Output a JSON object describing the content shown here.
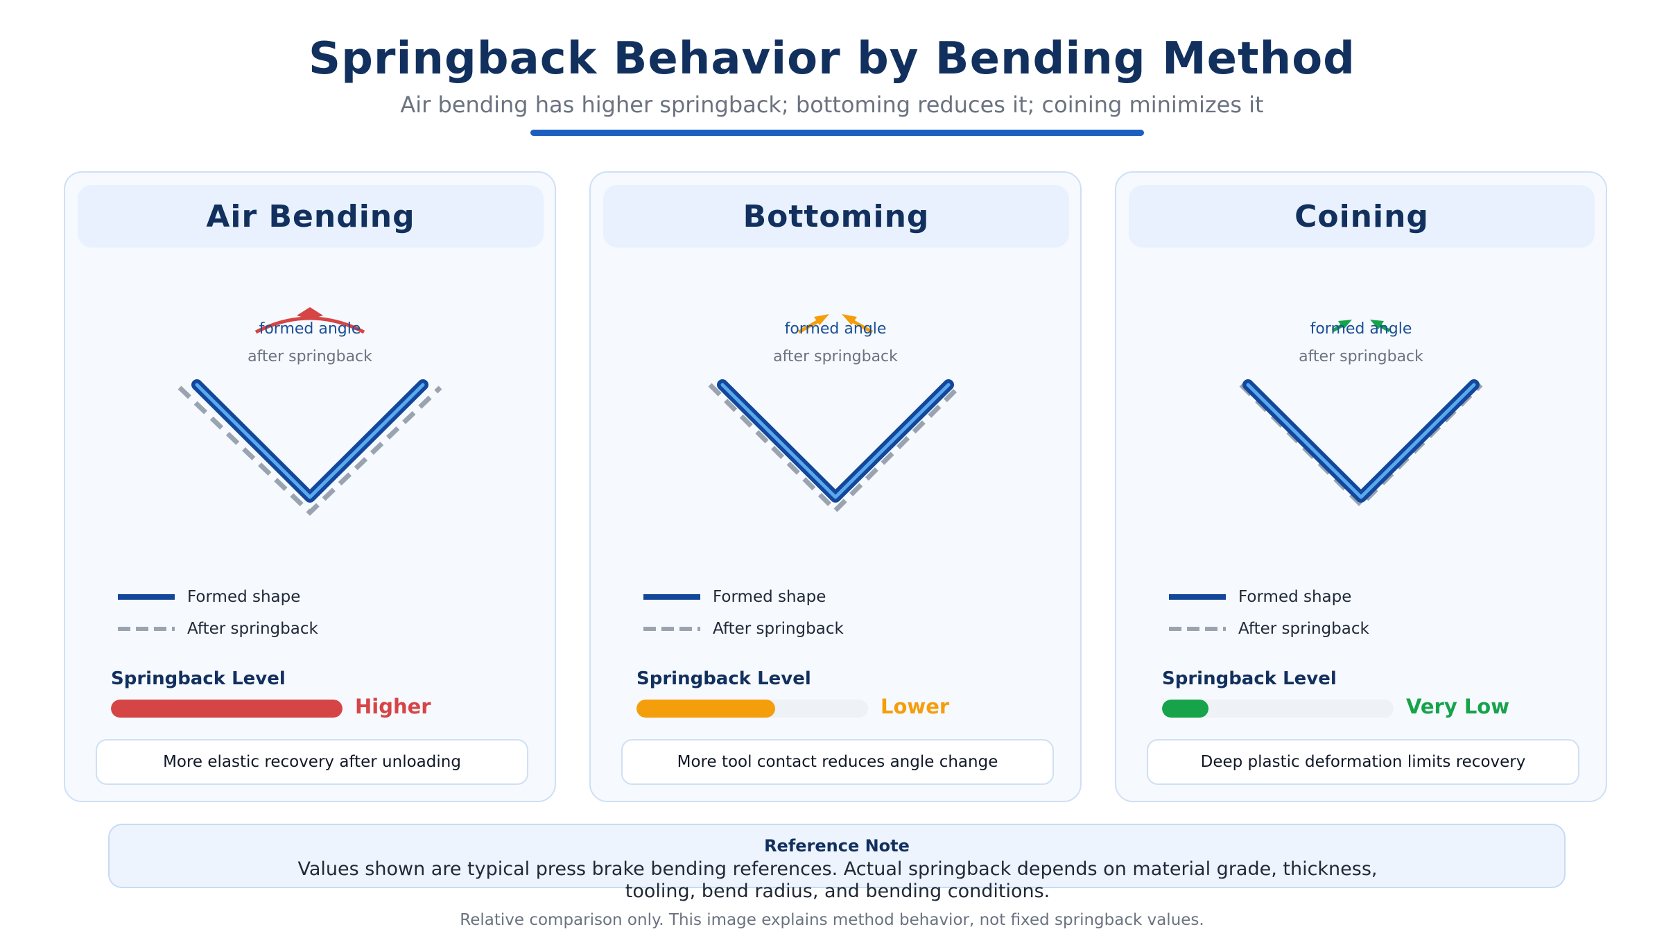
{
  "header": {
    "title": "Springback Behavior by Bending Method",
    "subtitle": "Air bending has higher springback; bottoming reduces it; coining minimizes it"
  },
  "cards": [
    {
      "method": "Air Bending",
      "formed_label": "formed angle",
      "springback_label": "after springback",
      "legend_formed": "Formed shape",
      "legend_after": "After springback",
      "springback_level_label": "Springback Level",
      "level_value": "Higher",
      "level_fraction": 1.0,
      "level_color": "#d64545",
      "arrow_color": "#d64545",
      "note": "More elastic recovery after unloading"
    },
    {
      "method": "Bottoming",
      "formed_label": "formed angle",
      "springback_label": "after springback",
      "legend_formed": "Formed shape",
      "legend_after": "After springback",
      "springback_level_label": "Springback Level",
      "level_value": "Lower",
      "level_fraction": 0.6,
      "level_color": "#f59e0b",
      "arrow_color": "#f59e0b",
      "note": "More tool contact reduces angle change"
    },
    {
      "method": "Coining",
      "formed_label": "formed angle",
      "springback_label": "after springback",
      "legend_formed": "Formed shape",
      "legend_after": "After springback",
      "springback_level_label": "Springback Level",
      "level_value": "Very Low",
      "level_fraction": 0.2,
      "level_color": "#16a34a",
      "arrow_color": "#16a34a",
      "note": "Deep plastic deformation limits recovery"
    }
  ],
  "reference": {
    "title": "Reference Note",
    "text": "Values shown are typical press brake bending references. Actual springback depends on material grade, thickness, tooling, bend radius, and bending conditions."
  },
  "footnote": "Relative comparison only. This image explains method behavior, not fixed springback values.",
  "colors": {
    "formed_line": "#12479a",
    "formed_highlight": "#5aa8f0",
    "springback_line": "#9aa4b1",
    "accent": "#1d5fbf"
  }
}
